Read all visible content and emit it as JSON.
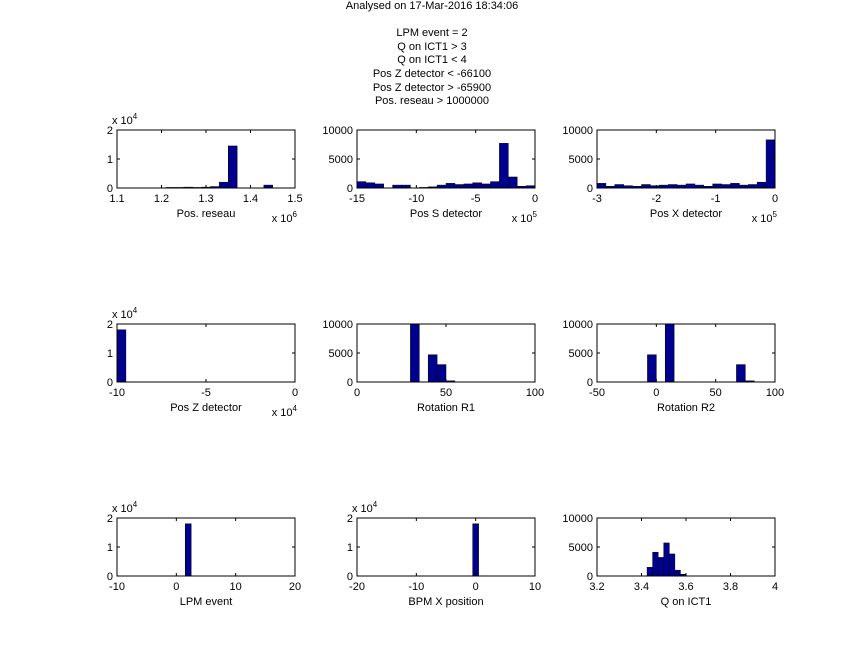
{
  "suptitle": {
    "lines": [
      "Analysed on 17-Mar-2016 18:34:06",
      "",
      "LPM event = 2",
      "Q on ICT1 > 3",
      "Q on ICT1 < 4",
      "Pos Z detector < -66100",
      "Pos Z detector > -65900",
      "Pos. reseau > 1000000"
    ]
  },
  "colors": {
    "bar_fill": "#00008f",
    "bar_edge": "#000000",
    "axes": "#000000"
  },
  "chart_data": [
    {
      "type": "bar",
      "xlabel": "Pos. reseau",
      "x_exponent": "6",
      "y_exponent": "4",
      "xlim": [
        1.1,
        1.5
      ],
      "ylim": [
        0,
        2
      ],
      "xticks": [
        1.1,
        1.2,
        1.3,
        1.4,
        1.5
      ],
      "xticklabels": [
        "1.1",
        "1.2",
        "1.3",
        "1.4",
        "1.5"
      ],
      "yticks": [
        0,
        1,
        2
      ],
      "yticklabels": [
        "0",
        "1",
        "2"
      ],
      "bin_width": 0.02,
      "x": [
        1.22,
        1.24,
        1.26,
        1.28,
        1.3,
        1.32,
        1.34,
        1.36,
        1.44
      ],
      "values": [
        0.02,
        0.02,
        0.03,
        0.02,
        0.03,
        0.05,
        0.2,
        1.45,
        0.1
      ]
    },
    {
      "type": "bar",
      "xlabel": "Pos S detector",
      "x_exponent": "5",
      "y_exponent": "",
      "xlim": [
        -15,
        0
      ],
      "ylim": [
        0,
        10000
      ],
      "xticks": [
        -15,
        -10,
        -5,
        0
      ],
      "xticklabels": [
        "-15",
        "-10",
        "-5",
        "0"
      ],
      "yticks": [
        0,
        5000,
        10000
      ],
      "yticklabels": [
        "0",
        "5000",
        "10000"
      ],
      "bin_width": 0.75,
      "x": [
        -14.625,
        -13.875,
        -13.125,
        -11.625,
        -10.875,
        -9.375,
        -8.625,
        -7.875,
        -7.125,
        -6.375,
        -5.625,
        -4.875,
        -4.125,
        -3.375,
        -2.625,
        -1.875,
        -1.125,
        -0.375
      ],
      "values": [
        1100,
        900,
        700,
        500,
        500,
        100,
        200,
        500,
        800,
        600,
        700,
        900,
        700,
        1100,
        7700,
        1900,
        300,
        400
      ]
    },
    {
      "type": "bar",
      "xlabel": "Pos X detector",
      "x_exponent": "5",
      "y_exponent": "",
      "xlim": [
        -3,
        0
      ],
      "ylim": [
        0,
        10000
      ],
      "xticks": [
        -3,
        -2,
        -1,
        0
      ],
      "xticklabels": [
        "-3",
        "-2",
        "-1",
        "0"
      ],
      "yticks": [
        0,
        5000,
        10000
      ],
      "yticklabels": [
        "0",
        "5000",
        "10000"
      ],
      "bin_width": 0.15,
      "x": [
        -2.925,
        -2.775,
        -2.625,
        -2.475,
        -2.325,
        -2.175,
        -2.025,
        -1.875,
        -1.725,
        -1.575,
        -1.425,
        -1.275,
        -1.125,
        -0.975,
        -0.825,
        -0.675,
        -0.525,
        -0.375,
        -0.225,
        -0.075
      ],
      "values": [
        800,
        300,
        600,
        400,
        300,
        600,
        400,
        500,
        600,
        500,
        700,
        500,
        300,
        700,
        600,
        800,
        500,
        600,
        1000,
        8300
      ]
    },
    {
      "type": "bar",
      "xlabel": "Pos Z detector",
      "x_exponent": "4",
      "y_exponent": "4",
      "xlim": [
        -10,
        0
      ],
      "ylim": [
        0,
        2
      ],
      "xticks": [
        -10,
        -5,
        0
      ],
      "xticklabels": [
        "-10",
        "-5",
        "0"
      ],
      "yticks": [
        0,
        1,
        2
      ],
      "yticklabels": [
        "0",
        "1",
        "2"
      ],
      "bin_width": 0.5,
      "x": [
        -9.75
      ],
      "values": [
        1.8
      ]
    },
    {
      "type": "bar",
      "xlabel": "Rotation R1",
      "x_exponent": "",
      "y_exponent": "",
      "xlim": [
        0,
        100
      ],
      "ylim": [
        0,
        10000
      ],
      "xticks": [
        0,
        50,
        100
      ],
      "xticklabels": [
        "0",
        "50",
        "100"
      ],
      "yticks": [
        0,
        5000,
        10000
      ],
      "yticklabels": [
        "0",
        "5000",
        "10000"
      ],
      "bin_width": 5,
      "x": [
        32.5,
        42.5,
        47.5,
        52.5
      ],
      "values": [
        10000,
        4700,
        3000,
        200
      ]
    },
    {
      "type": "bar",
      "xlabel": "Rotation R2",
      "x_exponent": "",
      "y_exponent": "",
      "xlim": [
        -50,
        100
      ],
      "ylim": [
        0,
        10000
      ],
      "xticks": [
        -50,
        0,
        50,
        100
      ],
      "xticklabels": [
        "-50",
        "0",
        "50",
        "100"
      ],
      "yticks": [
        0,
        5000,
        10000
      ],
      "yticklabels": [
        "0",
        "5000",
        "10000"
      ],
      "bin_width": 7.5,
      "x": [
        -3.75,
        11.25,
        71.25,
        78.75
      ],
      "values": [
        4700,
        10000,
        3000,
        200
      ]
    },
    {
      "type": "bar",
      "xlabel": "LPM event",
      "x_exponent": "",
      "y_exponent": "4",
      "xlim": [
        -10,
        20
      ],
      "ylim": [
        0,
        2
      ],
      "xticks": [
        -10,
        0,
        10,
        20
      ],
      "xticklabels": [
        "-10",
        "0",
        "10",
        "20"
      ],
      "yticks": [
        0,
        1,
        2
      ],
      "yticklabels": [
        "0",
        "1",
        "2"
      ],
      "bin_width": 1,
      "x": [
        2
      ],
      "values": [
        1.8
      ]
    },
    {
      "type": "bar",
      "xlabel": "BPM X position",
      "x_exponent": "",
      "y_exponent": "4",
      "xlim": [
        -20,
        10
      ],
      "ylim": [
        0,
        2
      ],
      "xticks": [
        -20,
        -10,
        0,
        10
      ],
      "xticklabels": [
        "-20",
        "-10",
        "0",
        "10"
      ],
      "yticks": [
        0,
        1,
        2
      ],
      "yticklabels": [
        "0",
        "1",
        "2"
      ],
      "bin_width": 1,
      "x": [
        0
      ],
      "values": [
        1.8
      ]
    },
    {
      "type": "bar",
      "xlabel": "Q on ICT1",
      "x_exponent": "",
      "y_exponent": "",
      "xlim": [
        3.2,
        4
      ],
      "ylim": [
        0,
        10000
      ],
      "xticks": [
        3.2,
        3.4,
        3.6,
        3.8,
        4
      ],
      "xticklabels": [
        "3.2",
        "3.4",
        "3.6",
        "3.8",
        "4"
      ],
      "yticks": [
        0,
        5000,
        10000
      ],
      "yticklabels": [
        "0",
        "5000",
        "10000"
      ],
      "bin_width": 0.025,
      "x": [
        3.4375,
        3.4625,
        3.4875,
        3.5125,
        3.5375,
        3.5625,
        3.5875
      ],
      "values": [
        1500,
        4100,
        3200,
        5700,
        3800,
        1000,
        300
      ]
    }
  ]
}
